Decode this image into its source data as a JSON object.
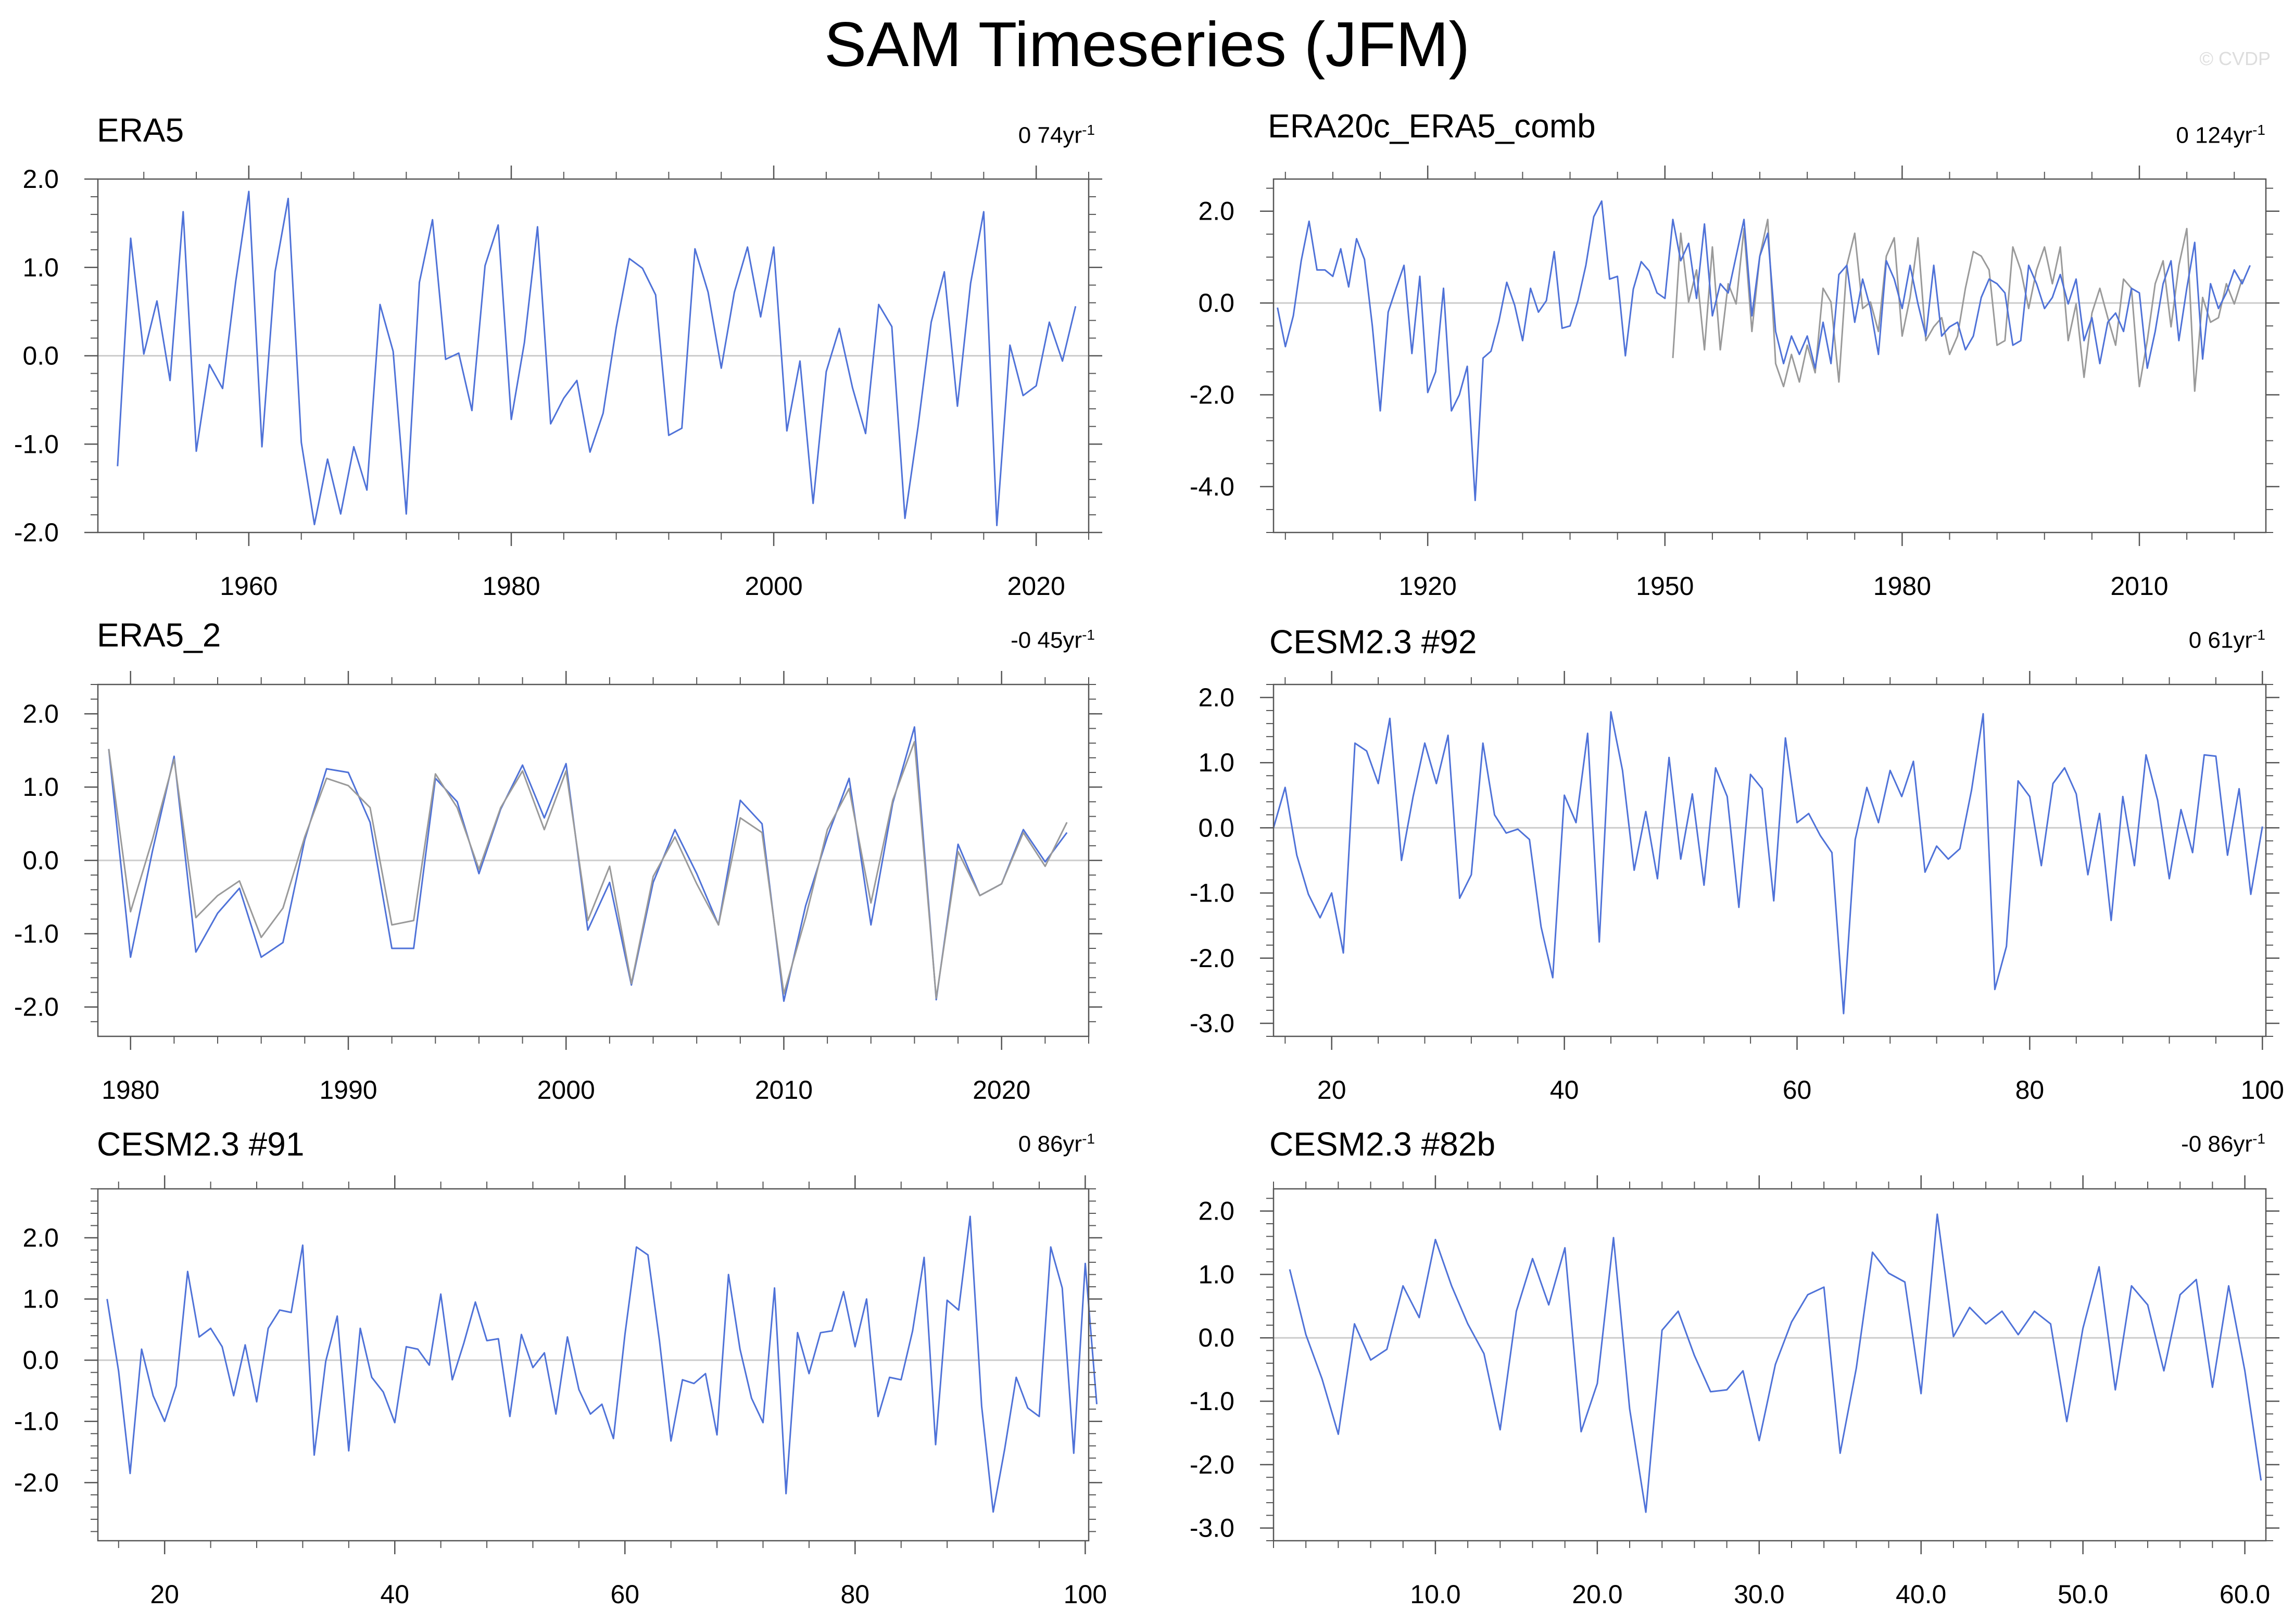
{
  "title": "SAM Timeseries (JFM)",
  "watermark": "© CVDP",
  "colors": {
    "series_primary": "#4f72d8",
    "series_secondary": "#9a9a9a",
    "zero_line": "#cccccc",
    "axes": "#555555"
  },
  "chart_data": [
    {
      "type": "line",
      "title": "ERA5",
      "trend_value": "0 74yr",
      "trend_unit": "-1",
      "xlim": [
        1948.5,
        2024
      ],
      "ylim": [
        -2.0,
        2.0
      ],
      "xticks": [
        1960,
        1980,
        2000,
        2020
      ],
      "xtick_labels": [
        "1960",
        "1980",
        "2000",
        "2020"
      ],
      "yticks": [
        -2.0,
        -1.0,
        0.0,
        1.0,
        2.0
      ],
      "ytick_labels": [
        "-2.0",
        "-1.0",
        "0.0",
        "1.0",
        "2.0"
      ],
      "x_start": 1950,
      "series": [
        {
          "values": [
            -1.25,
            1.33,
            0.02,
            0.62,
            -0.28,
            1.63,
            -1.08,
            -0.1,
            -0.37,
            0.84,
            1.86,
            -1.03,
            0.95,
            1.78,
            -0.98,
            -1.91,
            -1.17,
            -1.79,
            -1.03,
            -1.52,
            0.58,
            0.05,
            -1.79,
            0.83,
            1.54,
            -0.04,
            0.03,
            -0.62,
            1.02,
            1.48,
            -0.72,
            0.15,
            1.46,
            -0.77,
            -0.48,
            -0.28,
            -1.09,
            -0.65,
            0.32,
            1.1,
            0.99,
            0.69,
            -0.9,
            -0.82,
            1.21,
            0.72,
            -0.14,
            0.72,
            1.23,
            0.44,
            1.23,
            -0.85,
            -0.06,
            -1.67,
            -0.18,
            0.31,
            -0.36,
            -0.88,
            0.58,
            0.33,
            -1.84,
            -0.8,
            0.38,
            0.95,
            -0.57,
            0.82,
            1.63,
            -1.92,
            0.12,
            -0.45,
            -0.34,
            0.38,
            -0.06,
            0.56
          ]
        }
      ]
    },
    {
      "type": "line",
      "title": "ERA20c_ERA5_comb",
      "trend_value": "0 124yr",
      "trend_unit": "-1",
      "xlim": [
        1900.5,
        2026
      ],
      "ylim": [
        -5.0,
        2.7
      ],
      "xticks": [
        1920,
        1950,
        1980,
        2010
      ],
      "xtick_labels": [
        "1920",
        "1950",
        "1980",
        "2010"
      ],
      "yticks": [
        -4.0,
        -2.0,
        0.0,
        2.0
      ],
      "ytick_labels": [
        "-4.0",
        "-2.0",
        "0.0",
        "2.0"
      ],
      "x_start": 1901,
      "series": [
        {
          "values": [
            -0.1,
            -0.95,
            -0.28,
            0.92,
            1.78,
            0.72,
            0.72,
            0.58,
            1.18,
            0.35,
            1.4,
            0.95,
            -0.5,
            -2.35,
            -0.2,
            0.32,
            0.82,
            -1.1,
            0.58,
            -1.95,
            -1.5,
            0.32,
            -2.35,
            -2.0,
            -1.38,
            -4.3,
            -1.2,
            -1.05,
            -0.4,
            0.45,
            -0.05,
            -0.82,
            0.32,
            -0.2,
            0.05,
            1.12,
            -0.55,
            -0.5,
            0.05,
            0.82,
            1.88,
            2.22,
            0.52,
            0.58,
            -1.15,
            0.3,
            0.9,
            0.7,
            0.22,
            0.1,
            1.82,
            0.92,
            1.3,
            0.1,
            1.72,
            -0.28,
            0.42,
            0.22,
            1.02,
            1.82,
            -0.28,
            1.02,
            1.52,
            -0.62,
            -1.32,
            -0.72,
            -1.12,
            -0.72,
            -1.42,
            -0.42,
            -1.32,
            0.62,
            0.82,
            -0.42,
            0.52,
            -0.12,
            -1.12,
            0.92,
            0.52,
            -0.12,
            0.82,
            -0.02,
            -0.72,
            0.82,
            -0.72,
            -0.52,
            -0.42,
            -1.02,
            -0.72,
            0.12,
            0.52,
            0.42,
            0.22,
            -0.92,
            -0.82,
            0.82,
            0.42,
            -0.12,
            0.12,
            0.62,
            -0.02,
            0.52,
            -0.82,
            -0.32,
            -1.32,
            -0.42,
            -0.22,
            -0.62,
            0.32,
            0.22,
            -1.42,
            -0.62,
            0.42,
            0.92,
            -0.82,
            0.32,
            1.32,
            -1.22,
            0.42,
            -0.12,
            0.22,
            0.72,
            0.42,
            0.82
          ]
        },
        {
          "values": [
            -1.2,
            1.52,
            0.02,
            0.72,
            -1.02,
            1.22,
            -1.02,
            0.42,
            -0.02,
            1.62,
            -0.62,
            1.02,
            1.82,
            -1.32,
            -1.82,
            -1.12,
            -1.72,
            -0.92,
            -1.52,
            0.32,
            0.02,
            -1.72,
            0.82,
            1.52,
            -0.12,
            0.02,
            -0.62,
            1.02,
            1.42,
            -0.72,
            0.12,
            1.42,
            -0.82,
            -0.52,
            -0.32,
            -1.12,
            -0.72,
            0.32,
            1.12,
            1.02,
            0.72,
            -0.92,
            -0.82,
            1.22,
            0.72,
            -0.12,
            0.72,
            1.22,
            0.42,
            1.22,
            -0.82,
            -0.02,
            -1.62,
            -0.22,
            0.32,
            -0.32,
            -0.92,
            0.52,
            0.32,
            -1.82,
            -0.82,
            0.42,
            0.92,
            -0.52,
            0.82,
            1.62,
            -1.92,
            0.12,
            -0.42,
            -0.32,
            0.42,
            -0.02,
            0.52
          ],
          "x_start": 1951
        }
      ]
    },
    {
      "type": "line",
      "title": "ERA5_2",
      "trend_value": "-0 45yr",
      "trend_unit": "-1",
      "xlim": [
        1978.5,
        2024
      ],
      "ylim": [
        -2.4,
        2.4
      ],
      "xticks": [
        1980,
        1990,
        2000,
        2010,
        2020
      ],
      "xtick_labels": [
        "1980",
        "1990",
        "2000",
        "2010",
        "2020"
      ],
      "yticks": [
        -2.0,
        -1.0,
        0.0,
        1.0,
        2.0
      ],
      "ytick_labels": [
        "-2.0",
        "-1.0",
        "0.0",
        "1.0",
        "2.0"
      ],
      "x_start": 1979,
      "series": [
        {
          "values": [
            1.52,
            -0.7,
            0.28,
            1.38,
            -0.78,
            -0.48,
            -0.28,
            -1.05,
            -0.65,
            0.32,
            1.12,
            1.02,
            0.72,
            -0.88,
            -0.82,
            1.18,
            0.72,
            -0.12,
            0.72,
            1.22,
            0.42,
            1.22,
            -0.82,
            -0.08,
            -1.68,
            -0.22,
            0.32,
            -0.32,
            -0.88,
            0.58,
            0.38,
            -1.82,
            -0.78,
            0.42,
            0.98,
            -0.58,
            0.82,
            1.62,
            -1.88,
            0.12,
            -0.48,
            -0.32,
            0.38,
            -0.08,
            0.52
          ]
        },
        {
          "values": [
            1.52,
            -1.32,
            0.12,
            1.42,
            -1.25,
            -0.72,
            -0.38,
            -1.32,
            -1.12,
            0.28,
            1.25,
            1.2,
            0.52,
            -1.2,
            -1.2,
            1.12,
            0.8,
            -0.18,
            0.7,
            1.3,
            0.58,
            1.32,
            -0.95,
            -0.3,
            -1.7,
            -0.3,
            0.42,
            -0.18,
            -0.88,
            0.82,
            0.5,
            -1.92,
            -0.62,
            0.32,
            1.12,
            -0.88,
            0.78,
            1.82,
            -1.9,
            0.22,
            -0.48,
            -0.32,
            0.42,
            -0.02,
            0.38
          ]
        }
      ]
    },
    {
      "type": "line",
      "title": "CESM2.3 #92",
      "trend_value": "0 61yr",
      "trend_unit": "-1",
      "xlim": [
        15,
        100.3
      ],
      "ylim": [
        -3.2,
        2.2
      ],
      "xticks": [
        20,
        40,
        60,
        80,
        100
      ],
      "xtick_labels": [
        "20",
        "40",
        "60",
        "80",
        "100"
      ],
      "yticks": [
        -3.0,
        -2.0,
        -1.0,
        0.0,
        1.0,
        2.0
      ],
      "ytick_labels": [
        "-3.0",
        "-2.0",
        "-1.0",
        "0.0",
        "1.0",
        "2.0"
      ],
      "x_start": 15,
      "series": [
        {
          "values": [
            0.0,
            0.62,
            -0.42,
            -1.02,
            -1.38,
            -1.0,
            -1.92,
            1.3,
            1.18,
            0.68,
            1.68,
            -0.5,
            0.48,
            1.3,
            0.68,
            1.42,
            -1.08,
            -0.72,
            1.3,
            0.2,
            -0.08,
            -0.02,
            -0.18,
            -1.52,
            -2.3,
            0.5,
            0.08,
            1.45,
            -1.75,
            1.78,
            0.88,
            -0.65,
            0.25,
            -0.78,
            1.08,
            -0.48,
            0.52,
            -0.88,
            0.92,
            0.48,
            -1.22,
            0.82,
            0.6,
            -1.12,
            1.38,
            0.08,
            0.22,
            -0.12,
            -0.38,
            -2.85,
            -0.18,
            0.62,
            0.08,
            0.88,
            0.48,
            1.02,
            -0.68,
            -0.28,
            -0.48,
            -0.32,
            0.58,
            1.75,
            -2.48,
            -1.82,
            0.72,
            0.48,
            -0.58,
            0.68,
            0.92,
            0.52,
            -0.72,
            0.22,
            -1.42,
            0.48,
            -0.58,
            1.12,
            0.42,
            -0.78,
            0.28,
            -0.38,
            1.12,
            1.1,
            -0.42,
            0.6,
            -1.02,
            0.02
          ]
        }
      ]
    },
    {
      "type": "line",
      "title": "CESM2.3 #91",
      "trend_value": "0 86yr",
      "trend_unit": "-1",
      "xlim": [
        14.2,
        100.3
      ],
      "ylim": [
        -2.95,
        2.8
      ],
      "xticks": [
        20,
        40,
        60,
        80,
        100
      ],
      "xtick_labels": [
        "20",
        "40",
        "60",
        "80",
        "100"
      ],
      "yticks": [
        -2.0,
        -1.0,
        0.0,
        1.0,
        2.0
      ],
      "ytick_labels": [
        "-2.0",
        "-1.0",
        "0.0",
        "1.0",
        "2.0"
      ],
      "x_start": 15,
      "series": [
        {
          "values": [
            1.0,
            -0.18,
            -1.85,
            0.18,
            -0.58,
            -1.0,
            -0.42,
            1.45,
            0.38,
            0.52,
            0.22,
            -0.58,
            0.25,
            -0.68,
            0.52,
            0.82,
            0.78,
            1.88,
            -1.55,
            -0.02,
            0.72,
            -1.48,
            0.52,
            -0.28,
            -0.52,
            -1.02,
            0.22,
            0.18,
            -0.08,
            1.08,
            -0.32,
            0.28,
            0.95,
            0.32,
            0.35,
            -0.92,
            0.42,
            -0.12,
            0.12,
            -0.88,
            0.38,
            -0.48,
            -0.88,
            -0.72,
            -1.28,
            0.42,
            1.85,
            1.72,
            0.32,
            -1.32,
            -0.32,
            -0.38,
            -0.22,
            -1.22,
            1.4,
            0.18,
            -0.62,
            -1.02,
            1.18,
            -2.18,
            0.45,
            -0.22,
            0.45,
            0.48,
            1.12,
            0.22,
            1.0,
            -0.92,
            -0.28,
            -0.32,
            0.48,
            1.68,
            -1.38,
            0.98,
            0.82,
            2.35,
            -0.75,
            -2.48,
            -1.45,
            -0.28,
            -0.78,
            -0.92,
            1.85,
            1.18,
            -1.52,
            1.58,
            -0.72
          ]
        }
      ]
    },
    {
      "type": "line",
      "title": "CESM2.3 #82b",
      "trend_value": "-0 86yr",
      "trend_unit": "-1",
      "xlim": [
        0,
        61.3
      ],
      "ylim": [
        -3.2,
        2.35
      ],
      "xticks": [
        10,
        20,
        30,
        40,
        50,
        60
      ],
      "xtick_labels": [
        "10.0",
        "20.0",
        "30.0",
        "40.0",
        "50.0",
        "60.0"
      ],
      "yticks": [
        -3.0,
        -2.0,
        -1.0,
        0.0,
        1.0,
        2.0
      ],
      "ytick_labels": [
        "-3.0",
        "-2.0",
        "-1.0",
        "0.0",
        "1.0",
        "2.0"
      ],
      "x_start": 1,
      "series": [
        {
          "values": [
            1.08,
            0.05,
            -0.65,
            -1.52,
            0.22,
            -0.35,
            -0.18,
            0.82,
            0.32,
            1.55,
            0.82,
            0.22,
            -0.25,
            -1.45,
            0.42,
            1.25,
            0.52,
            1.42,
            -1.48,
            -0.72,
            1.58,
            -1.12,
            -2.75,
            0.12,
            0.42,
            -0.28,
            -0.85,
            -0.82,
            -0.52,
            -1.62,
            -0.42,
            0.25,
            0.68,
            0.8,
            -1.82,
            -0.48,
            1.35,
            1.02,
            0.88,
            -0.88,
            1.95,
            0.02,
            0.48,
            0.22,
            0.42,
            0.05,
            0.42,
            0.22,
            -1.32,
            0.15,
            1.12,
            -0.82,
            0.82,
            0.52,
            -0.52,
            0.68,
            0.92,
            -0.78,
            0.82,
            -0.52,
            -2.25
          ]
        }
      ]
    }
  ]
}
